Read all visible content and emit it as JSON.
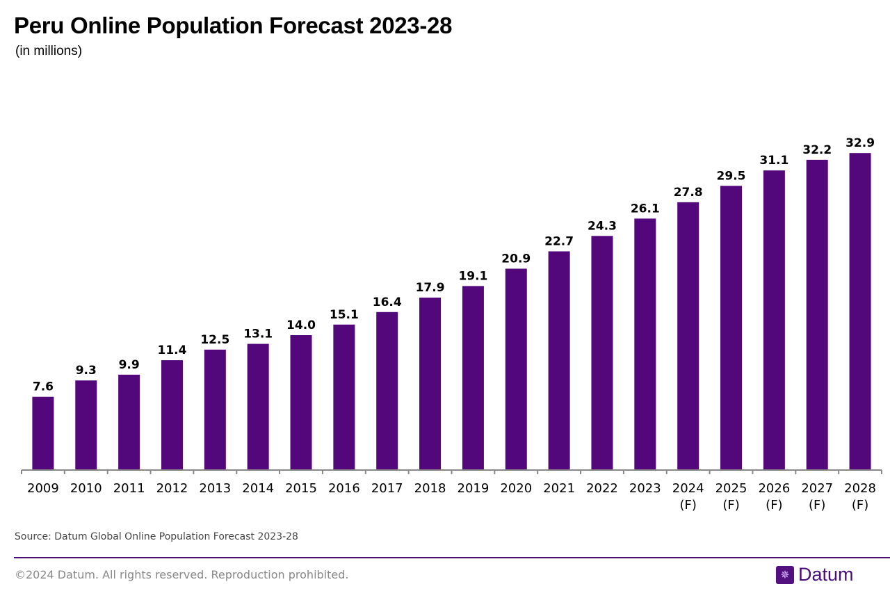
{
  "chart_data": {
    "type": "bar",
    "title": "Peru Online Population Forecast 2023-28",
    "subtitle": "(in millions)",
    "categories": [
      "2009",
      "2010",
      "2011",
      "2012",
      "2013",
      "2014",
      "2015",
      "2016",
      "2017",
      "2018",
      "2019",
      "2020",
      "2021",
      "2022",
      "2023",
      "2024\n(F)",
      "2025\n(F)",
      "2026\n(F)",
      "2027\n(F)",
      "2028\n(F)"
    ],
    "values": [
      7.6,
      9.3,
      9.9,
      11.4,
      12.5,
      13.1,
      14.0,
      15.1,
      16.4,
      17.9,
      19.1,
      20.9,
      22.7,
      24.3,
      26.1,
      27.8,
      29.5,
      31.1,
      32.2,
      32.9
    ],
    "value_labels": [
      "7.6",
      "9.3",
      "9.9",
      "11.4",
      "12.5",
      "13.1",
      "14.0",
      "15.1",
      "16.4",
      "17.9",
      "19.1",
      "20.9",
      "22.7",
      "24.3",
      "26.1",
      "27.8",
      "29.5",
      "31.1",
      "32.2",
      "32.9"
    ],
    "ylim": [
      0,
      33.2
    ],
    "grid": false,
    "bar_color": "#52077a"
  },
  "footer": {
    "source": "Source: Datum Global Online Population Forecast 2023-28",
    "copyright": "©2024 Datum. All rights reserved. Reproduction prohibited.",
    "logo_text": "Datum"
  },
  "colors": {
    "accent": "#4b0e78"
  }
}
